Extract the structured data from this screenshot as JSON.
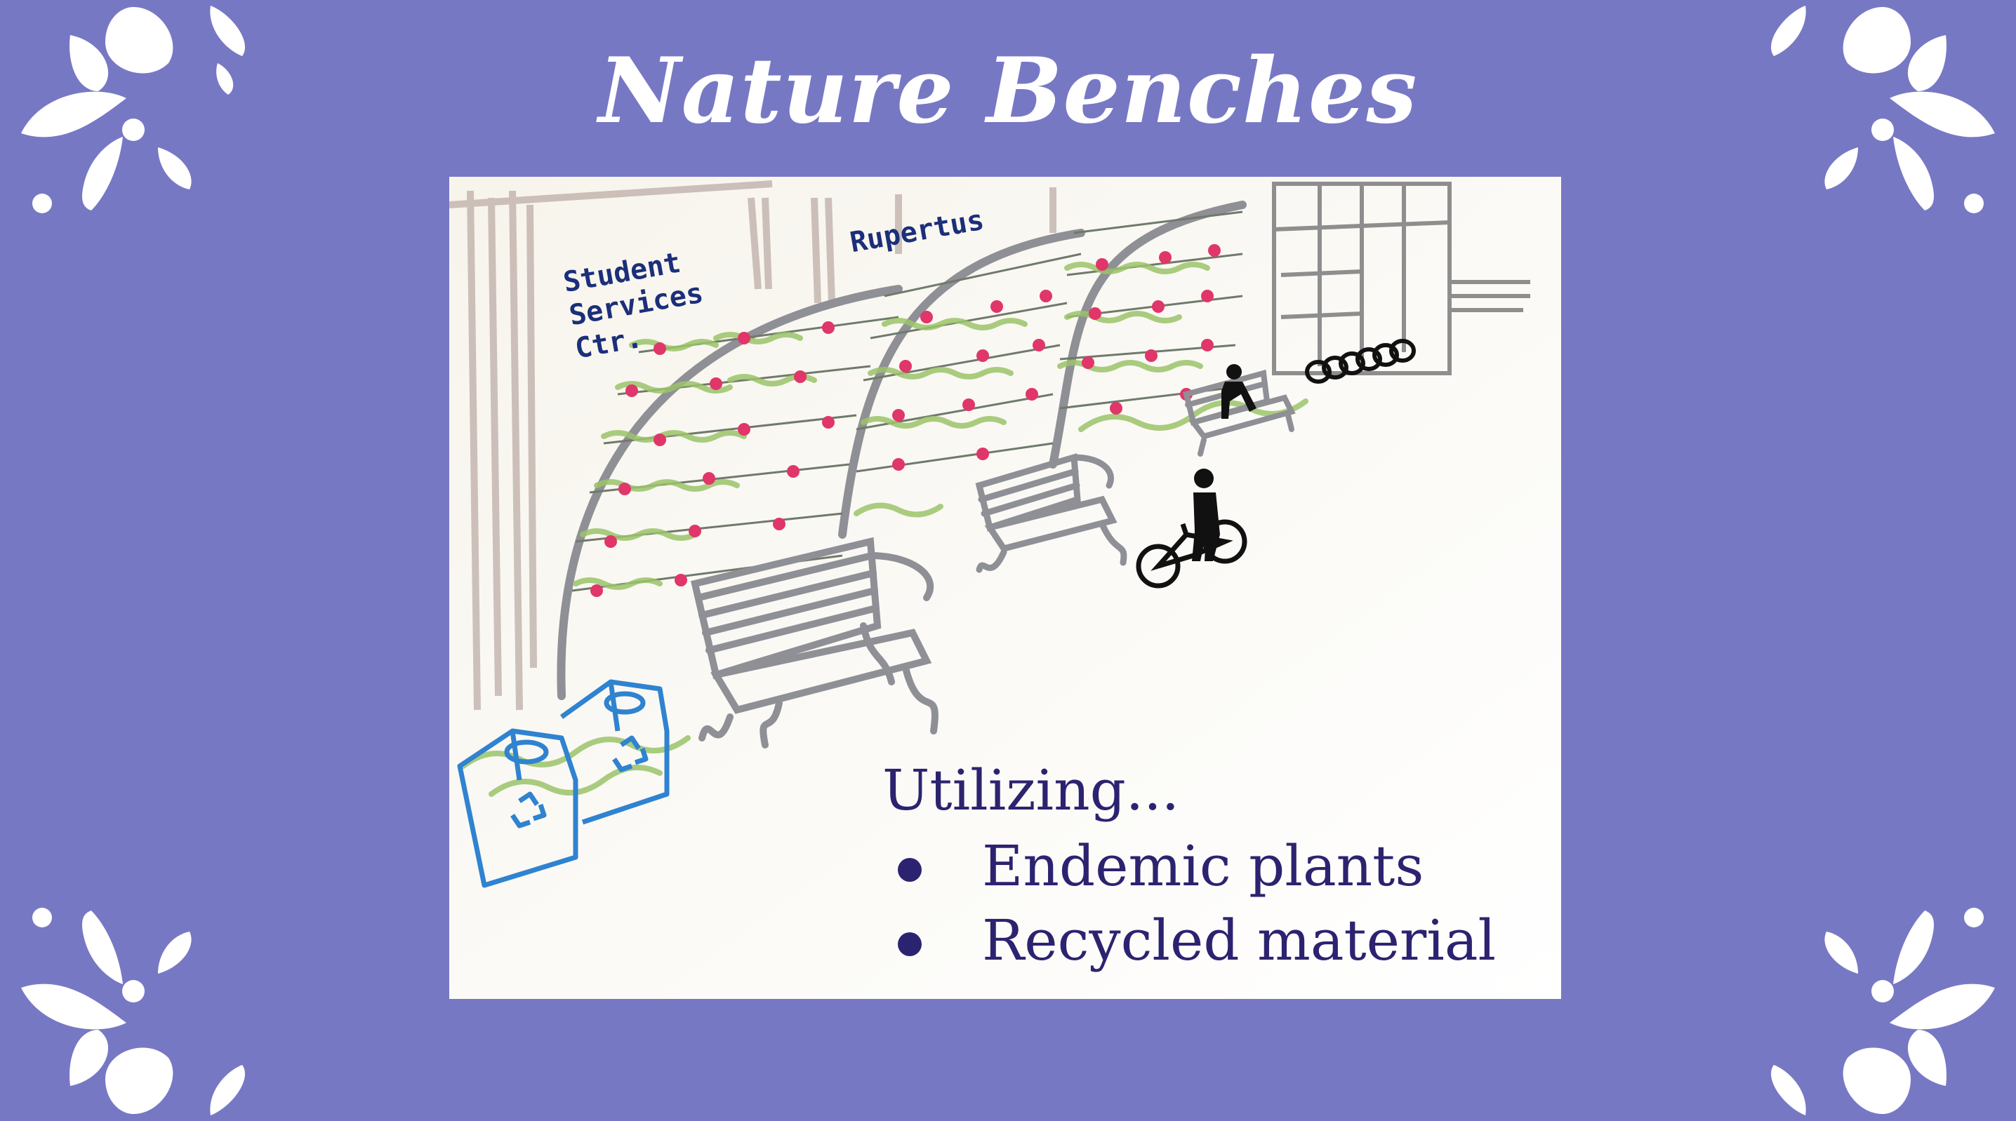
{
  "slide": {
    "title": "Nature Benches",
    "background_color": "#7778c4",
    "text_color": "#2c2370"
  },
  "sketch": {
    "labels": {
      "building_left_line1": "Student",
      "building_left_line2": "Services",
      "building_left_line3": "Ctr.",
      "building_right": "Rupertus"
    }
  },
  "caption": {
    "lead": "Utilizing...",
    "bullets": [
      "Endemic plants",
      "Recycled material"
    ]
  },
  "icons": [
    "splash-decoration-icon",
    "bench-icon",
    "recycling-bin-icon",
    "bicycle-icon",
    "person-icon",
    "bike-rack-icon"
  ]
}
